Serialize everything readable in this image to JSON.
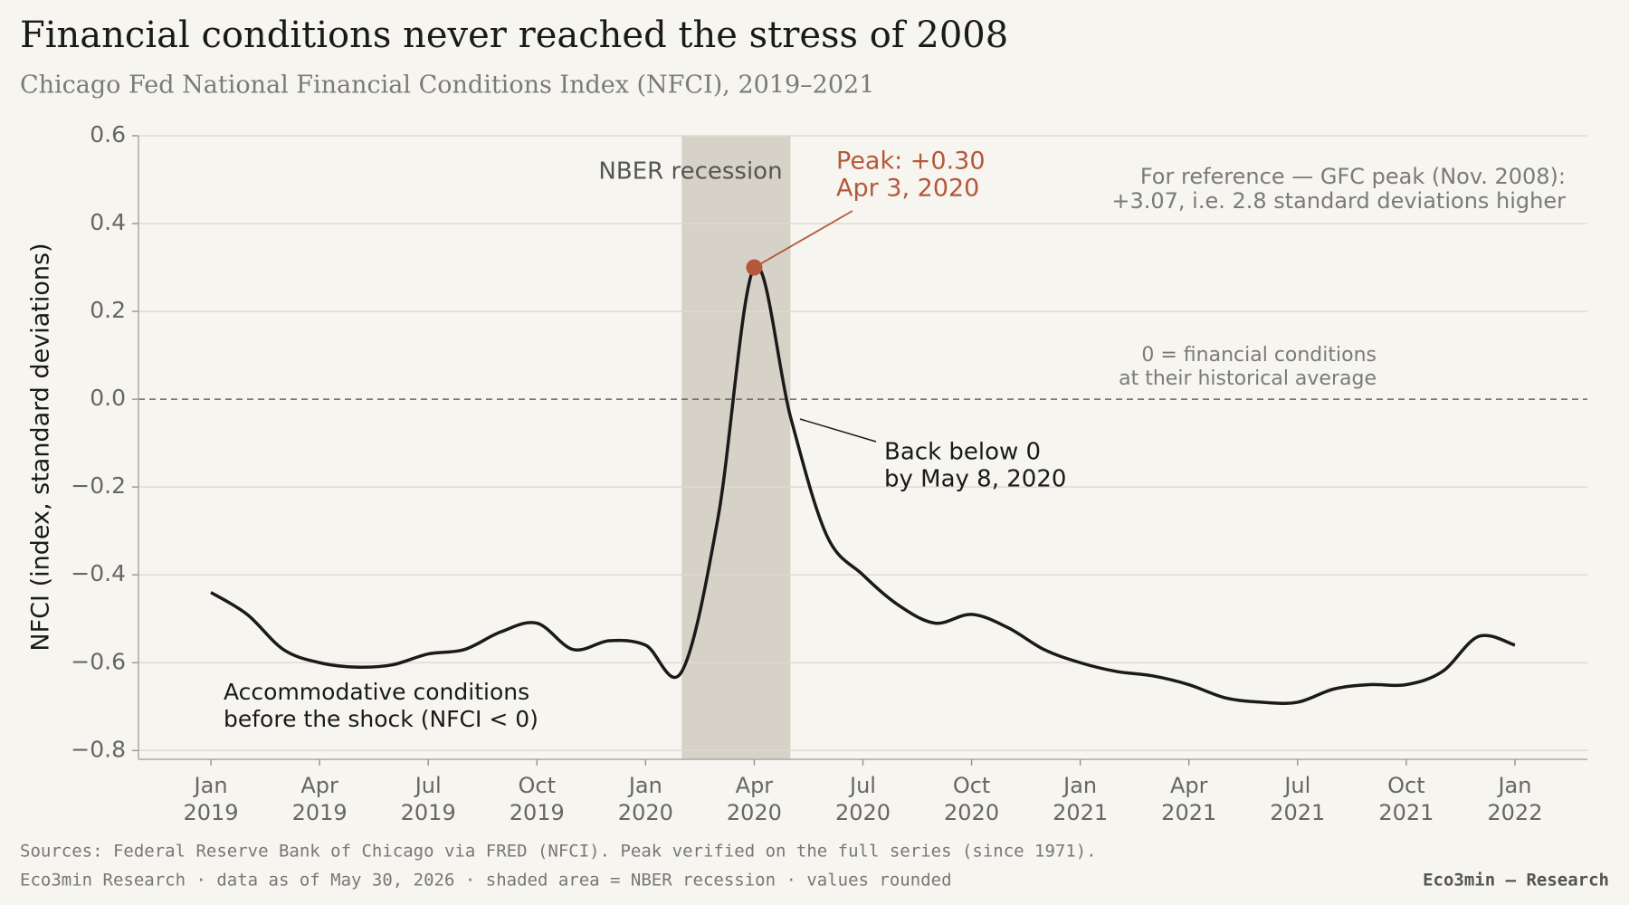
{
  "chart_data": {
    "type": "line",
    "title": "Financial conditions never reached the stress of 2008",
    "subtitle": "Chicago Fed National Financial Conditions Index (NFCI), 2019–2021",
    "y_label": "NFCI (index, standard deviations)",
    "x": [
      "2019-01",
      "2019-02",
      "2019-03",
      "2019-04",
      "2019-05",
      "2019-06",
      "2019-07",
      "2019-08",
      "2019-09",
      "2019-10",
      "2019-11",
      "2019-12",
      "2020-01",
      "2020-02",
      "2020-03",
      "2020-04",
      "2020-05",
      "2020-06",
      "2020-07",
      "2020-08",
      "2020-09",
      "2020-10",
      "2020-11",
      "2020-12",
      "2021-01",
      "2021-02",
      "2021-03",
      "2021-04",
      "2021-05",
      "2021-06",
      "2021-07",
      "2021-08",
      "2021-09",
      "2021-10",
      "2021-11",
      "2021-12",
      "2022-01"
    ],
    "values": [
      -0.44,
      -0.49,
      -0.57,
      -0.6,
      -0.61,
      -0.605,
      -0.58,
      -0.57,
      -0.53,
      -0.51,
      -0.57,
      -0.55,
      -0.56,
      -0.62,
      -0.27,
      0.3,
      -0.04,
      -0.31,
      -0.4,
      -0.47,
      -0.51,
      -0.49,
      -0.52,
      -0.57,
      -0.6,
      -0.62,
      -0.63,
      -0.65,
      -0.68,
      -0.69,
      -0.69,
      -0.66,
      -0.65,
      -0.65,
      -0.62,
      -0.54,
      -0.56
    ],
    "color": "#1a1a1a",
    "xlim": [
      "2018-11",
      "2022-03"
    ],
    "xticks": [
      {
        "value": "2019-01",
        "label": "Jan 2019"
      },
      {
        "value": "2019-04",
        "label": "Apr 2019"
      },
      {
        "value": "2019-07",
        "label": "Jul 2019"
      },
      {
        "value": "2019-10",
        "label": "Oct 2019"
      },
      {
        "value": "2020-01",
        "label": "Jan 2020"
      },
      {
        "value": "2020-04",
        "label": "Apr 2020"
      },
      {
        "value": "2020-07",
        "label": "Jul 2020"
      },
      {
        "value": "2020-10",
        "label": "Oct 2020"
      },
      {
        "value": "2021-01",
        "label": "Jan 2021"
      },
      {
        "value": "2021-04",
        "label": "Apr 2021"
      },
      {
        "value": "2021-07",
        "label": "Jul 2021"
      },
      {
        "value": "2021-10",
        "label": "Oct 2021"
      },
      {
        "value": "2022-01",
        "label": "Jan 2022"
      }
    ],
    "ylim": [
      -0.82,
      0.6
    ],
    "yticks": [
      0.6,
      0.4,
      0.2,
      {
        "value": 0,
        "label": "0.0"
      },
      {
        "value": -0.2,
        "label": "−0.2"
      },
      {
        "value": -0.4,
        "label": "−0.4"
      },
      {
        "value": -0.6,
        "label": "−0.6"
      },
      {
        "value": -0.8,
        "label": "−0.8"
      }
    ],
    "grid": true,
    "zero_line": "dashed",
    "recession": {
      "label": "NBER recession",
      "start": "2020-02",
      "end": "2020-05",
      "color": "#d6d2c7"
    },
    "peak_color": "#b5583a",
    "annotations": {
      "peak": [
        "Peak: +0.30",
        "Apr 3, 2020"
      ],
      "back_below": [
        "Back below 0",
        "by May 8, 2020"
      ],
      "reference": [
        "For reference — GFC peak (Nov. 2008):",
        "+3.07, i.e. 2.8 standard deviations higher"
      ],
      "zero_meaning": [
        "0 = financial conditions",
        "at their historical average"
      ],
      "accommodative": [
        "Accommodative conditions",
        "before the shock (NFCI < 0)"
      ]
    },
    "footer": {
      "sources": "Sources: Federal Reserve Bank of Chicago via FRED (NFCI). Peak verified on the full series (since 1971).",
      "note": "Eco3min Research · data as of May 30, 2026 · shaded area = NBER recession · values rounded",
      "credit": "Eco3min — Research"
    }
  }
}
